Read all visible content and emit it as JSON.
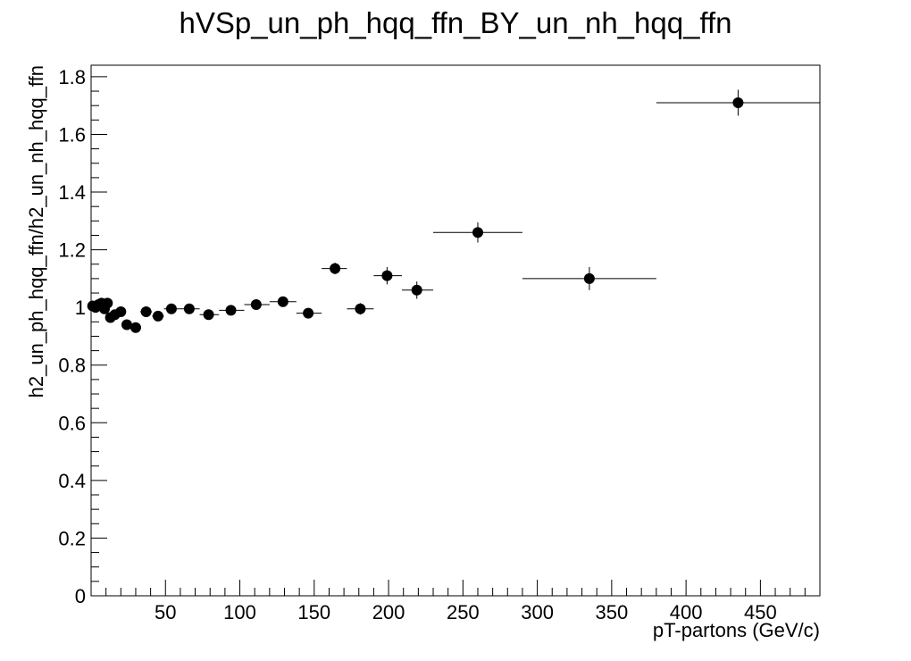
{
  "chart_data": {
    "type": "scatter",
    "title": "hVSp_un_ph_hqq_ffn_BY_un_nh_hqq_ffn",
    "xlabel": "pT-partons (GeV/c)",
    "ylabel": "h2_un_ph_hqq_ffn/h2_un_nh_hqq_ffn",
    "xlim": [
      0,
      490
    ],
    "ylim": [
      0,
      1.84
    ],
    "x_ticks": [
      50,
      100,
      150,
      200,
      250,
      300,
      350,
      400,
      450
    ],
    "y_ticks": [
      0,
      0.2,
      0.4,
      0.6,
      0.8,
      1,
      1.2,
      1.4,
      1.6,
      1.8
    ],
    "x_tick_labels": [
      "50",
      "100",
      "150",
      "200",
      "250",
      "300",
      "350",
      "400",
      "450"
    ],
    "y_tick_labels": [
      "0",
      "0.2",
      "0.4",
      "0.6",
      "0.8",
      "1",
      "1.2",
      "1.4",
      "1.6",
      "1.8"
    ],
    "marker_color": "#000000",
    "grid": false,
    "legend": "none",
    "points": [
      {
        "x": 1,
        "xlo": 0,
        "xhi": 2,
        "y": 1.005,
        "yerr": 0.01
      },
      {
        "x": 3,
        "xlo": 2,
        "xhi": 4,
        "y": 1.0,
        "yerr": 0.01
      },
      {
        "x": 5,
        "xlo": 4,
        "xhi": 6,
        "y": 1.01,
        "yerr": 0.01
      },
      {
        "x": 7,
        "xlo": 6,
        "xhi": 8,
        "y": 1.015,
        "yerr": 0.01
      },
      {
        "x": 9,
        "xlo": 8,
        "xhi": 10,
        "y": 0.995,
        "yerr": 0.01
      },
      {
        "x": 11,
        "xlo": 10,
        "xhi": 12,
        "y": 1.015,
        "yerr": 0.01
      },
      {
        "x": 13,
        "xlo": 12,
        "xhi": 14,
        "y": 0.965,
        "yerr": 0.01
      },
      {
        "x": 16,
        "xlo": 14,
        "xhi": 18,
        "y": 0.975,
        "yerr": 0.01
      },
      {
        "x": 20,
        "xlo": 18,
        "xhi": 22,
        "y": 0.985,
        "yerr": 0.01
      },
      {
        "x": 24,
        "xlo": 22,
        "xhi": 26,
        "y": 0.94,
        "yerr": 0.01
      },
      {
        "x": 30,
        "xlo": 27,
        "xhi": 33,
        "y": 0.93,
        "yerr": 0.01
      },
      {
        "x": 37,
        "xlo": 33,
        "xhi": 41,
        "y": 0.985,
        "yerr": 0.01
      },
      {
        "x": 45,
        "xlo": 41,
        "xhi": 49,
        "y": 0.97,
        "yerr": 0.01
      },
      {
        "x": 54,
        "xlo": 49,
        "xhi": 59,
        "y": 0.995,
        "yerr": 0.01
      },
      {
        "x": 66,
        "xlo": 59,
        "xhi": 73,
        "y": 0.995,
        "yerr": 0.01
      },
      {
        "x": 79,
        "xlo": 73,
        "xhi": 86,
        "y": 0.975,
        "yerr": 0.01
      },
      {
        "x": 94,
        "xlo": 86,
        "xhi": 103,
        "y": 0.99,
        "yerr": 0.012
      },
      {
        "x": 111,
        "xlo": 103,
        "xhi": 120,
        "y": 1.01,
        "yerr": 0.012
      },
      {
        "x": 129,
        "xlo": 120,
        "xhi": 138,
        "y": 1.02,
        "yerr": 0.015
      },
      {
        "x": 146,
        "xlo": 138,
        "xhi": 155,
        "y": 0.98,
        "yerr": 0.015
      },
      {
        "x": 164,
        "xlo": 155,
        "xhi": 172,
        "y": 1.135,
        "yerr": 0.02
      },
      {
        "x": 181,
        "xlo": 172,
        "xhi": 190,
        "y": 0.995,
        "yerr": 0.02
      },
      {
        "x": 199,
        "xlo": 190,
        "xhi": 209,
        "y": 1.11,
        "yerr": 0.03
      },
      {
        "x": 219,
        "xlo": 209,
        "xhi": 230,
        "y": 1.06,
        "yerr": 0.03
      },
      {
        "x": 260,
        "xlo": 230,
        "xhi": 290,
        "y": 1.26,
        "yerr": 0.035
      },
      {
        "x": 335,
        "xlo": 290,
        "xhi": 380,
        "y": 1.1,
        "yerr": 0.04
      },
      {
        "x": 435,
        "xlo": 380,
        "xhi": 490,
        "y": 1.71,
        "yerr": 0.045
      }
    ]
  }
}
